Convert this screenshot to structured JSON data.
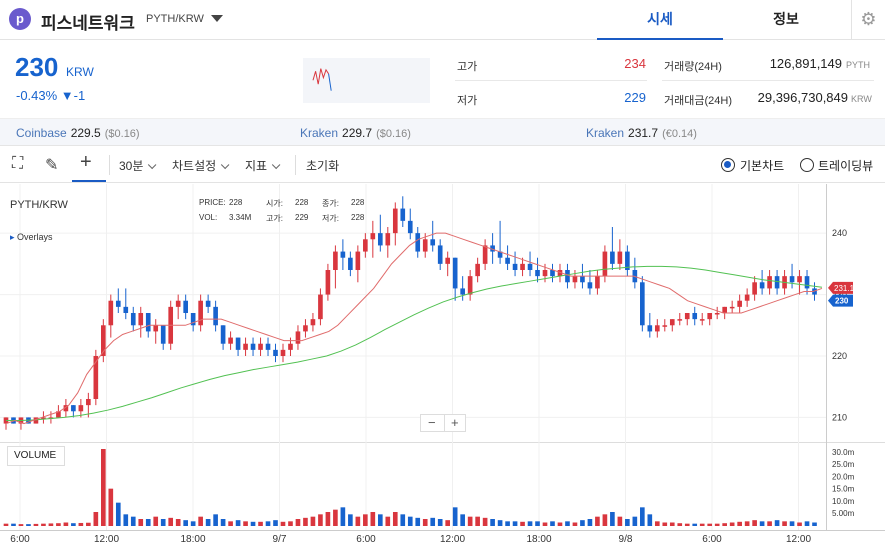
{
  "header": {
    "coin_name": "피스네트워크",
    "pair": "PYTH/KRW",
    "logo_glyph": "p",
    "tabs": [
      {
        "label": "시세",
        "active": true
      },
      {
        "label": "정보",
        "active": false
      }
    ],
    "settings_icon": "gear-icon"
  },
  "ticker": {
    "price": "230",
    "unit": "KRW",
    "change": "-0.43% ▼-1",
    "change_color": "#1763ce",
    "high_label": "고가",
    "high": "234",
    "low_label": "저가",
    "low": "229",
    "volume_label": "거래량(24H)",
    "volume": "126,891,149",
    "volume_unit": "PYTH",
    "value_label": "거래대금(24H)",
    "value": "29,396,730,849",
    "value_unit": "KRW",
    "spark_trend": [
      0.55,
      0.2,
      0.7,
      0.1,
      0.45,
      0.15,
      0.3,
      0.95
    ]
  },
  "exchanges": [
    {
      "name": "Coinbase",
      "price": "229.5",
      "change": "($0.16)"
    },
    {
      "name": "Kraken",
      "price": "229.7",
      "change": "($0.16)"
    },
    {
      "name": "Kraken",
      "price": "231.7",
      "change": "(€0.14)"
    }
  ],
  "toolbar": {
    "interval": "30분",
    "chart_settings": "차트설정",
    "indicators": "지표",
    "reset": "초기화",
    "radio_basic": "기본차트",
    "radio_tradingview": "트레이딩뷰"
  },
  "chart_overlay": {
    "symbol": "PYTH/KRW",
    "overlays": "Overlays",
    "price_label": "PRICE:",
    "price_val": "228",
    "open_label": "시가:",
    "open_val": "228",
    "close_label": "종가:",
    "close_val": "228",
    "vol_label": "VOL:",
    "vol_val": "3.34M",
    "high_label": "고가:",
    "high_val": "229",
    "low_label": "저가:",
    "low_val": "228",
    "volume_button": "VOLUME",
    "zoom_out": "−",
    "zoom_in": "+",
    "last_price_tag": "230",
    "ma_tag": "231.1"
  },
  "chart_data": {
    "type": "candlestick",
    "x_labels": [
      "6:00",
      "12:00",
      "18:00",
      "9/7",
      "6:00",
      "12:00",
      "18:00",
      "9/8",
      "6:00",
      "12:00"
    ],
    "y_ticks": [
      210,
      220,
      230,
      240
    ],
    "y_ticks_text": [
      "210",
      "220",
      "230",
      "240"
    ],
    "ylim": [
      206,
      248
    ],
    "vol_ticks": [
      "30.0m",
      "25.0m",
      "20.0m",
      "15.0m",
      "10.0m",
      "5.00m"
    ],
    "vol_max": 33,
    "colors": {
      "up": "#d9363e",
      "down": "#1763ce",
      "ma_short": "#e06c6c",
      "ma_long": "#52c152"
    },
    "candles": [
      [
        209,
        210,
        208,
        210,
        1.0
      ],
      [
        210,
        210,
        209,
        209,
        1.0
      ],
      [
        209,
        210,
        208,
        210,
        0.8
      ],
      [
        210,
        210,
        209,
        209,
        0.8
      ],
      [
        209,
        210,
        209,
        210,
        0.9
      ],
      [
        210,
        211,
        209,
        210,
        1.0
      ],
      [
        210,
        211,
        209,
        210,
        1.1
      ],
      [
        210,
        212,
        210,
        211,
        1.2
      ],
      [
        211,
        213,
        210,
        212,
        1.5
      ],
      [
        212,
        212,
        210,
        211,
        1.2
      ],
      [
        211,
        213,
        210,
        212,
        1.3
      ],
      [
        212,
        214,
        210,
        213,
        1.4
      ],
      [
        213,
        221,
        212,
        220,
        6.0
      ],
      [
        220,
        226,
        219,
        225,
        33.0
      ],
      [
        225,
        230,
        223,
        229,
        16.0
      ],
      [
        229,
        231,
        227,
        228,
        10.0
      ],
      [
        228,
        231,
        226,
        227,
        5.0
      ],
      [
        227,
        228,
        224,
        225,
        4.0
      ],
      [
        225,
        228,
        223,
        227,
        3.0
      ],
      [
        227,
        227,
        223,
        224,
        3.0
      ],
      [
        224,
        226,
        222,
        225,
        4.0
      ],
      [
        225,
        225,
        221,
        222,
        3.0
      ],
      [
        222,
        229,
        221,
        228,
        3.5
      ],
      [
        228,
        230,
        226,
        229,
        3.0
      ],
      [
        229,
        230,
        226,
        227,
        2.5
      ],
      [
        227,
        227,
        224,
        225,
        2.0
      ],
      [
        225,
        230,
        224,
        229,
        4.0
      ],
      [
        229,
        230,
        227,
        228,
        3.0
      ],
      [
        228,
        229,
        224,
        225,
        5.0
      ],
      [
        225,
        225,
        221,
        222,
        3.0
      ],
      [
        222,
        224,
        221,
        223,
        2.0
      ],
      [
        223,
        223,
        220,
        221,
        2.5
      ],
      [
        221,
        223,
        220,
        222,
        2.0
      ],
      [
        222,
        223,
        220,
        221,
        1.8
      ],
      [
        221,
        223,
        220,
        222,
        1.8
      ],
      [
        222,
        223,
        220,
        221,
        2.0
      ],
      [
        221,
        222,
        219,
        220,
        2.5
      ],
      [
        220,
        222,
        219,
        221,
        1.8
      ],
      [
        221,
        223,
        220,
        222,
        2.0
      ],
      [
        222,
        225,
        221,
        224,
        3.0
      ],
      [
        224,
        226,
        223,
        225,
        3.5
      ],
      [
        225,
        227,
        224,
        226,
        4.0
      ],
      [
        226,
        231,
        225,
        230,
        5.0
      ],
      [
        230,
        235,
        229,
        234,
        6.0
      ],
      [
        234,
        238,
        231,
        237,
        7.0
      ],
      [
        237,
        239,
        234,
        236,
        8.0
      ],
      [
        236,
        237,
        233,
        234,
        5.0
      ],
      [
        234,
        238,
        232,
        237,
        4.0
      ],
      [
        237,
        240,
        236,
        239,
        5.0
      ],
      [
        239,
        242,
        236,
        240,
        6.0
      ],
      [
        240,
        243,
        237,
        238,
        5.0
      ],
      [
        238,
        241,
        236,
        240,
        4.0
      ],
      [
        240,
        245,
        238,
        244,
        6.0
      ],
      [
        244,
        246,
        241,
        242,
        5.0
      ],
      [
        242,
        244,
        239,
        240,
        4.0
      ],
      [
        240,
        241,
        236,
        237,
        3.5
      ],
      [
        237,
        240,
        236,
        239,
        3.0
      ],
      [
        239,
        242,
        237,
        238,
        3.5
      ],
      [
        238,
        239,
        234,
        235,
        3.0
      ],
      [
        235,
        237,
        233,
        236,
        2.5
      ],
      [
        236,
        236,
        229,
        231,
        8.0
      ],
      [
        231,
        233,
        229,
        230,
        5.0
      ],
      [
        230,
        234,
        229,
        233,
        4.0
      ],
      [
        233,
        236,
        232,
        235,
        4.0
      ],
      [
        235,
        239,
        234,
        238,
        3.5
      ],
      [
        238,
        240,
        235,
        237,
        3.0
      ],
      [
        237,
        242,
        235,
        236,
        2.5
      ],
      [
        236,
        238,
        234,
        235,
        2.0
      ],
      [
        235,
        237,
        233,
        234,
        2.0
      ],
      [
        234,
        236,
        233,
        235,
        1.8
      ],
      [
        235,
        237,
        233,
        234,
        2.0
      ],
      [
        234,
        236,
        232,
        233,
        2.0
      ],
      [
        233,
        235,
        232,
        234,
        1.5
      ],
      [
        234,
        235,
        232,
        233,
        2.0
      ],
      [
        233,
        235,
        232,
        234,
        1.5
      ],
      [
        234,
        235,
        231,
        232,
        2.0
      ],
      [
        232,
        234,
        231,
        233,
        1.5
      ],
      [
        233,
        235,
        231,
        232,
        2.5
      ],
      [
        232,
        234,
        230,
        231,
        3.0
      ],
      [
        231,
        234,
        230,
        233,
        4.0
      ],
      [
        233,
        238,
        232,
        237,
        5.0
      ],
      [
        237,
        241,
        234,
        235,
        6.0
      ],
      [
        235,
        239,
        234,
        237,
        4.0
      ],
      [
        237,
        238,
        233,
        234,
        3.0
      ],
      [
        234,
        236,
        231,
        232,
        4.0
      ],
      [
        232,
        233,
        224,
        225,
        8.0
      ],
      [
        225,
        227,
        223,
        224,
        5.0
      ],
      [
        224,
        226,
        223,
        225,
        2.0
      ],
      [
        225,
        226,
        224,
        225,
        1.5
      ],
      [
        225,
        226,
        224,
        226,
        1.5
      ],
      [
        226,
        227,
        225,
        226,
        1.2
      ],
      [
        226,
        227,
        225,
        227,
        1.0
      ],
      [
        227,
        228,
        225,
        226,
        1.0
      ],
      [
        226,
        227,
        225,
        226,
        1.0
      ],
      [
        226,
        227,
        225,
        227,
        1.0
      ],
      [
        227,
        228,
        226,
        227,
        1.0
      ],
      [
        227,
        228,
        226,
        228,
        1.2
      ],
      [
        228,
        229,
        227,
        228,
        1.5
      ],
      [
        228,
        230,
        227,
        229,
        1.8
      ],
      [
        229,
        231,
        228,
        230,
        2.0
      ],
      [
        230,
        233,
        229,
        232,
        2.5
      ],
      [
        232,
        234,
        230,
        231,
        2.0
      ],
      [
        231,
        234,
        230,
        233,
        2.0
      ],
      [
        233,
        234,
        230,
        231,
        2.5
      ],
      [
        231,
        234,
        230,
        233,
        2.0
      ],
      [
        233,
        235,
        231,
        232,
        2.0
      ],
      [
        232,
        234,
        230,
        233,
        1.5
      ],
      [
        233,
        234,
        230,
        231,
        2.0
      ],
      [
        231,
        232,
        229,
        230,
        1.5
      ]
    ],
    "ma_short": [
      209,
      209.5,
      209,
      209.5,
      210,
      210.5,
      211,
      212,
      214,
      217,
      219,
      221,
      222.5,
      223.5,
      224,
      224.5,
      225,
      225,
      225,
      225,
      225,
      225.5,
      226,
      226,
      226,
      225.5,
      225,
      224.5,
      224,
      223.5,
      223,
      222.5,
      222.5,
      222.5,
      223,
      223.5,
      224,
      225,
      226.5,
      228,
      229.5,
      231,
      233,
      235,
      236.5,
      238,
      239,
      239.5,
      240,
      240,
      239.5,
      239,
      238.5,
      238,
      237.5,
      237,
      236.5,
      236,
      235.5,
      235,
      234.5,
      234,
      233.5,
      233,
      233,
      233,
      233,
      233,
      233,
      233,
      233,
      232.5,
      232,
      231.5,
      231,
      230,
      229,
      228.5,
      228,
      227.5,
      227,
      227,
      227,
      227.5,
      228,
      228.5,
      229,
      229.5,
      230,
      230.5,
      230.5,
      231
    ],
    "ma_long": [
      209.5,
      209.5,
      209.6,
      209.8,
      210,
      210.3,
      210.7,
      211.2,
      211.8,
      212.5,
      213.2,
      214,
      214.8,
      215.5,
      216.2,
      216.8,
      217.3,
      217.8,
      218.2,
      218.6,
      219,
      219.5,
      220,
      220.8,
      221.8,
      223,
      224.3,
      225.5,
      226.7,
      227.8,
      228.8,
      229.6,
      230.3,
      230.9,
      231.4,
      231.8,
      232.2,
      232.6,
      233,
      233.4,
      233.8,
      234.1,
      234.3,
      234.5,
      234.6,
      234.6,
      234.5,
      234.3,
      234,
      233.6,
      233.2,
      232.8,
      232.4,
      232.1,
      231.8,
      231.5,
      231.2
    ]
  }
}
